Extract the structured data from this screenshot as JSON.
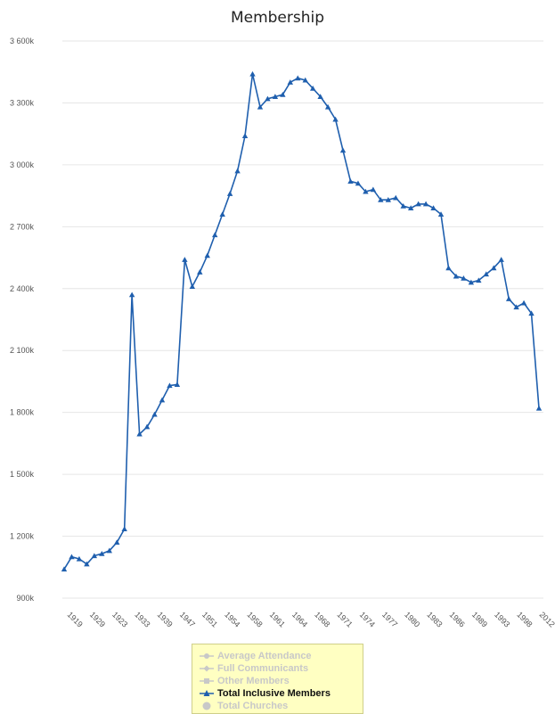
{
  "chart_data": {
    "type": "line",
    "title": "Membership",
    "xlabel": "",
    "ylabel": "",
    "ylim": [
      900000,
      3600000
    ],
    "y_ticks": [
      900000,
      1200000,
      1500000,
      1800000,
      2100000,
      2400000,
      2700000,
      3000000,
      3300000,
      3600000
    ],
    "y_tick_labels": [
      "900k",
      "1 200k",
      "1 500k",
      "1 800k",
      "2 100k",
      "2 400k",
      "2 700k",
      "3 000k",
      "3 300k",
      "3 600k"
    ],
    "x_tick_labels": [
      "1919",
      "1929",
      "1923",
      "1933",
      "1939",
      "1947",
      "1951",
      "1954",
      "1958",
      "1961",
      "1964",
      "1968",
      "1971",
      "1974",
      "1977",
      "1980",
      "1983",
      "1986",
      "1989",
      "1993",
      "1998",
      "2012"
    ],
    "legend_position": "bottom",
    "grid": true,
    "series": [
      {
        "name": "Total Inclusive Members",
        "color": "#1f5fae",
        "values": [
          1040000,
          1100000,
          1090000,
          1065000,
          1105000,
          1115000,
          1130000,
          1170000,
          1235000,
          2370000,
          1695000,
          1730000,
          1790000,
          1860000,
          1930000,
          1935000,
          2540000,
          2410000,
          2480000,
          2560000,
          2660000,
          2760000,
          2860000,
          2970000,
          3140000,
          3440000,
          3280000,
          3320000,
          3330000,
          3340000,
          3400000,
          3420000,
          3410000,
          3370000,
          3330000,
          3280000,
          3220000,
          3070000,
          2920000,
          2910000,
          2870000,
          2880000,
          2830000,
          2830000,
          2840000,
          2800000,
          2790000,
          2810000,
          2810000,
          2790000,
          2760000,
          2500000,
          2460000,
          2450000,
          2430000,
          2440000,
          2470000,
          2500000,
          2540000,
          2350000,
          2310000,
          2330000,
          2280000,
          1820000
        ]
      }
    ]
  },
  "legend": {
    "items": [
      {
        "label": "Average Attendance",
        "active": false,
        "marker": "circle-line",
        "color": "#c8c8c8"
      },
      {
        "label": "Full Communicants",
        "active": false,
        "marker": "diamond-line",
        "color": "#c8c8c8"
      },
      {
        "label": "Other Members",
        "active": false,
        "marker": "square-line",
        "color": "#c8c8c8"
      },
      {
        "label": "Total Inclusive Members",
        "active": true,
        "marker": "triangle-line",
        "color": "#1f5fae"
      },
      {
        "label": "Total Churches",
        "active": false,
        "marker": "circle",
        "color": "#c8c8c8"
      }
    ]
  }
}
